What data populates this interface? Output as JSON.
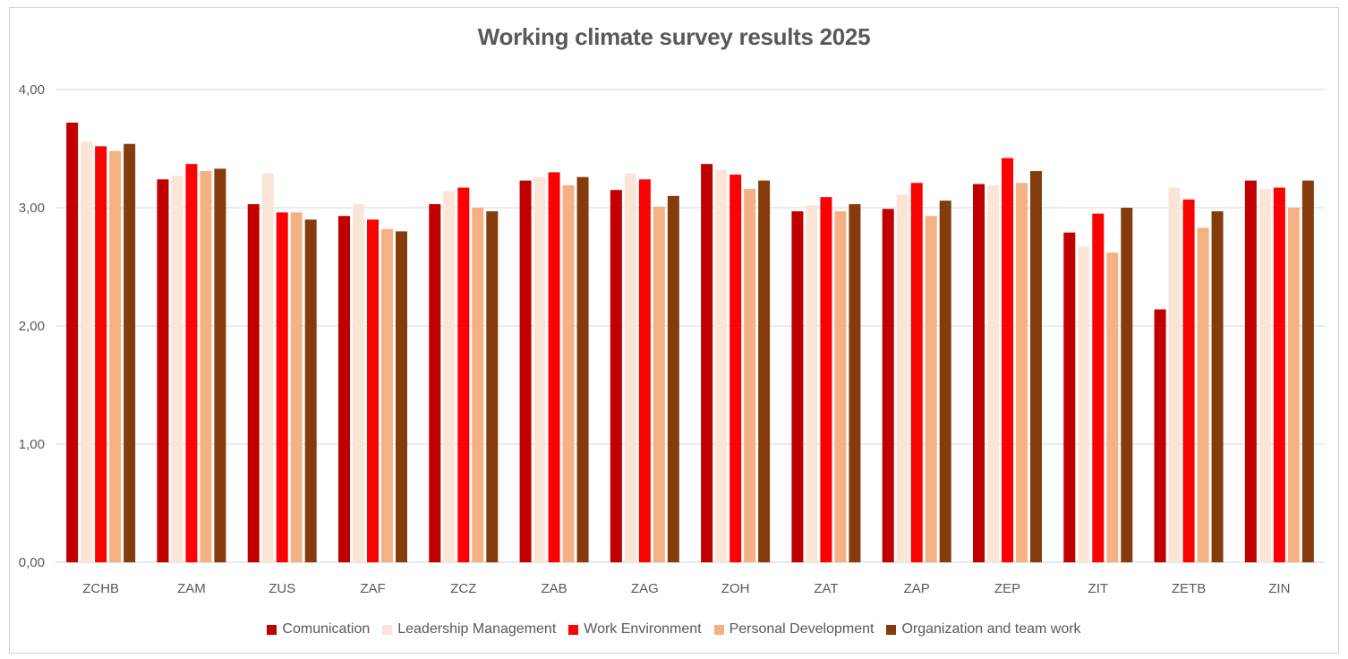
{
  "chart_data": {
    "type": "bar",
    "title": "Working climate survey results 2025",
    "xlabel": "",
    "ylabel": "",
    "ylim": [
      0,
      4
    ],
    "yticks": [
      "0,00",
      "1,00",
      "2,00",
      "3,00",
      "4,00"
    ],
    "grid": true,
    "legend_position": "bottom",
    "categories": [
      "ZCHB",
      "ZAM",
      "ZUS",
      "ZAF",
      "ZCZ",
      "ZAB",
      "ZAG",
      "ZOH",
      "ZAT",
      "ZAP",
      "ZEP",
      "ZIT",
      "ZETB",
      "ZIN"
    ],
    "series": [
      {
        "name": "Comunication",
        "color": "#C00000",
        "values": [
          3.72,
          3.24,
          3.03,
          2.93,
          3.03,
          3.23,
          3.15,
          3.37,
          2.97,
          2.99,
          3.2,
          2.79,
          2.14,
          3.23
        ]
      },
      {
        "name": "Leadership Management",
        "color": "#FBE5D6",
        "values": [
          3.56,
          3.27,
          3.29,
          3.03,
          3.14,
          3.26,
          3.29,
          3.32,
          3.02,
          3.11,
          3.19,
          2.67,
          3.17,
          3.16
        ]
      },
      {
        "name": "Work Environment",
        "color": "#FF0000",
        "values": [
          3.52,
          3.37,
          2.96,
          2.9,
          3.17,
          3.3,
          3.24,
          3.28,
          3.09,
          3.21,
          3.42,
          2.95,
          3.07,
          3.17
        ]
      },
      {
        "name": "Personal Development",
        "color": "#F4B183",
        "values": [
          3.48,
          3.31,
          2.96,
          2.82,
          3.0,
          3.19,
          3.01,
          3.16,
          2.97,
          2.93,
          3.21,
          2.62,
          2.83,
          3.0
        ]
      },
      {
        "name": "Organization and team work",
        "color": "#843C0C",
        "values": [
          3.54,
          3.33,
          2.9,
          2.8,
          2.97,
          3.26,
          3.1,
          3.23,
          3.03,
          3.06,
          3.31,
          3.0,
          2.97,
          3.23
        ]
      }
    ]
  },
  "colors": {
    "gridline": "#d9d9d9",
    "axis_text": "#595959",
    "title_text": "#595959"
  }
}
